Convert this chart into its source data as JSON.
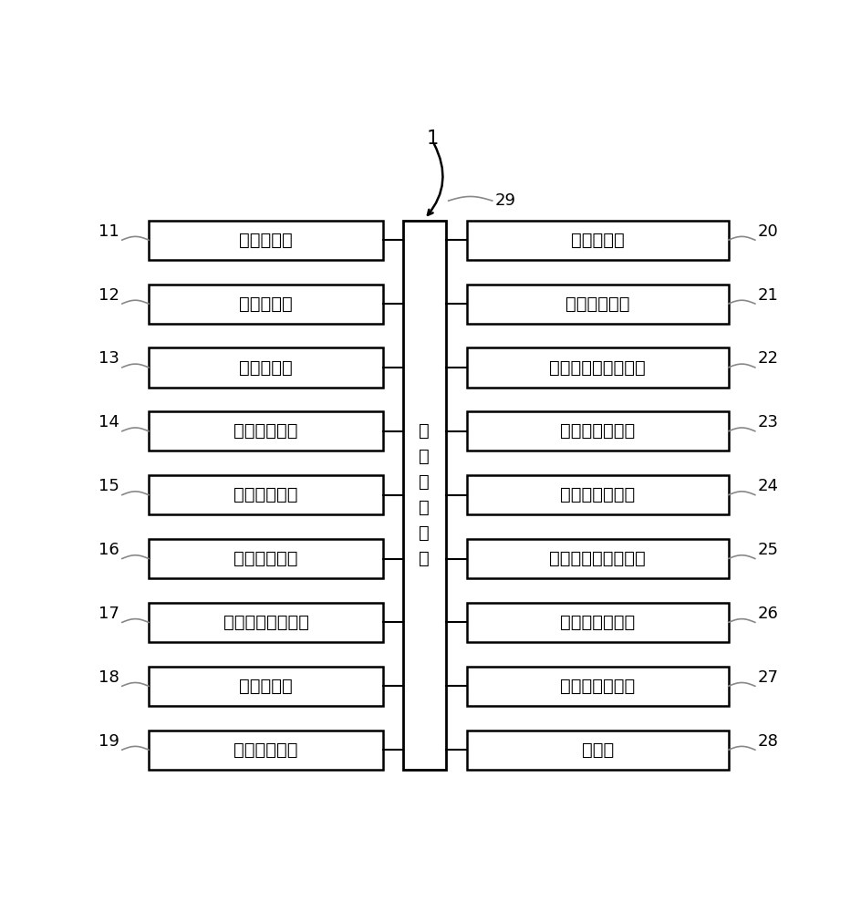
{
  "left_boxes": [
    {
      "label": "画面存储部",
      "number": "11"
    },
    {
      "label": "输入显示部",
      "number": "12"
    },
    {
      "label": "获取控制部",
      "number": "13"
    },
    {
      "label": "声音流获取部",
      "number": "14"
    },
    {
      "label": "声音流分块部",
      "number": "15"
    },
    {
      "label": "音频块缓存部",
      "number": "16"
    },
    {
      "label": "音频块缓存控制部",
      "number": "17"
    },
    {
      "label": "噪音筛选部",
      "number": "18"
    },
    {
      "label": "声音流判断部",
      "number": "19"
    }
  ],
  "right_boxes": [
    {
      "label": "留白判断部",
      "number": "20"
    },
    {
      "label": "音频块存储部",
      "number": "21"
    },
    {
      "label": "识别请求文件处理部",
      "number": "22"
    },
    {
      "label": "识别请求交互部",
      "number": "23"
    },
    {
      "label": "识别结果获取部",
      "number": "24"
    },
    {
      "label": "翻译请求文件处理部",
      "number": "25"
    },
    {
      "label": "翻译请求交互部",
      "number": "26"
    },
    {
      "label": "翻译结果获取部",
      "number": "27"
    },
    {
      "label": "通信部",
      "number": "28"
    }
  ],
  "center_label": "设\n计\n侧\n控\n制\n部",
  "center_number": "29",
  "top_number": "1",
  "bg_color": "#ffffff",
  "box_edge_color": "#000000",
  "box_fill_color": "#ffffff",
  "center_fill_color": "#ffffff",
  "font_size": 14,
  "small_font_size": 13,
  "number_font_size": 13
}
